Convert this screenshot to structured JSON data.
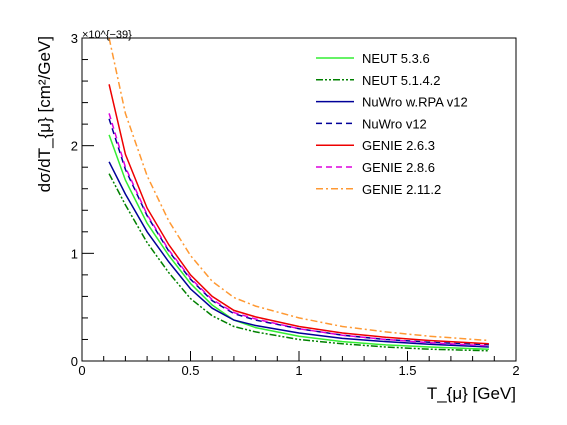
{
  "chart_data": {
    "type": "line",
    "xlabel": "T_{μ} [GeV]",
    "ylabel": "dσ/dT_{μ} [cm²/GeV]",
    "y_exponent_label": "×10^{−39}",
    "xlim": [
      0,
      2
    ],
    "ylim": [
      0,
      3
    ],
    "x_ticks": [
      "0",
      "0.5",
      "1",
      "1.5",
      "2"
    ],
    "y_ticks": [
      "0",
      "1",
      "2",
      "3"
    ],
    "legend_position": "top-right",
    "grid": false,
    "series": [
      {
        "name": "NEUT 5.3.6",
        "color": "#33ee33",
        "dash": "solid",
        "x": [
          0.125,
          0.2,
          0.3,
          0.4,
          0.5,
          0.6,
          0.7,
          0.8,
          1.0,
          1.2,
          1.4,
          1.6,
          1.875
        ],
        "y": [
          2.1,
          1.68,
          1.28,
          0.98,
          0.72,
          0.52,
          0.38,
          0.31,
          0.23,
          0.18,
          0.15,
          0.13,
          0.11
        ]
      },
      {
        "name": "NEUT 5.1.4.2",
        "color": "#008000",
        "dash": "dashdotdot",
        "x": [
          0.125,
          0.2,
          0.3,
          0.4,
          0.5,
          0.6,
          0.7,
          0.8,
          1.0,
          1.2,
          1.4,
          1.6,
          1.875
        ],
        "y": [
          1.74,
          1.45,
          1.1,
          0.82,
          0.58,
          0.42,
          0.32,
          0.27,
          0.2,
          0.16,
          0.13,
          0.11,
          0.095
        ]
      },
      {
        "name": "NuWro w.RPA v12",
        "color": "#000099",
        "dash": "solid",
        "x": [
          0.125,
          0.2,
          0.3,
          0.4,
          0.5,
          0.6,
          0.7,
          0.8,
          1.0,
          1.2,
          1.4,
          1.6,
          1.875
        ],
        "y": [
          1.85,
          1.55,
          1.2,
          0.92,
          0.67,
          0.49,
          0.38,
          0.33,
          0.26,
          0.21,
          0.18,
          0.155,
          0.13
        ]
      },
      {
        "name": "NuWro v12",
        "color": "#000099",
        "dash": "dashed",
        "x": [
          0.125,
          0.2,
          0.3,
          0.4,
          0.5,
          0.6,
          0.7,
          0.8,
          1.0,
          1.2,
          1.4,
          1.6,
          1.875
        ],
        "y": [
          2.25,
          1.78,
          1.35,
          1.02,
          0.76,
          0.56,
          0.44,
          0.38,
          0.3,
          0.24,
          0.2,
          0.175,
          0.15
        ]
      },
      {
        "name": "GENIE 2.6.3",
        "color": "#ee0000",
        "dash": "solid",
        "x": [
          0.125,
          0.2,
          0.3,
          0.4,
          0.5,
          0.6,
          0.7,
          0.8,
          1.0,
          1.2,
          1.4,
          1.6,
          1.875
        ],
        "y": [
          2.57,
          1.92,
          1.42,
          1.08,
          0.8,
          0.6,
          0.47,
          0.41,
          0.32,
          0.26,
          0.22,
          0.19,
          0.16
        ]
      },
      {
        "name": "GENIE 2.8.6",
        "color": "#dd00dd",
        "dash": "dashed",
        "x": [
          0.125,
          0.2,
          0.3,
          0.4,
          0.5,
          0.6,
          0.7,
          0.8,
          1.0,
          1.2,
          1.4,
          1.6,
          1.875
        ],
        "y": [
          2.3,
          1.8,
          1.36,
          1.03,
          0.77,
          0.57,
          0.45,
          0.39,
          0.3,
          0.24,
          0.2,
          0.17,
          0.14
        ]
      },
      {
        "name": "GENIE 2.11.2",
        "color": "#ff9933",
        "dash": "dashdot",
        "x": [
          0.125,
          0.2,
          0.3,
          0.4,
          0.5,
          0.6,
          0.7,
          0.8,
          1.0,
          1.2,
          1.4,
          1.6,
          1.875
        ],
        "y": [
          3.0,
          2.3,
          1.72,
          1.3,
          0.98,
          0.74,
          0.59,
          0.51,
          0.4,
          0.32,
          0.27,
          0.23,
          0.19
        ]
      }
    ]
  }
}
